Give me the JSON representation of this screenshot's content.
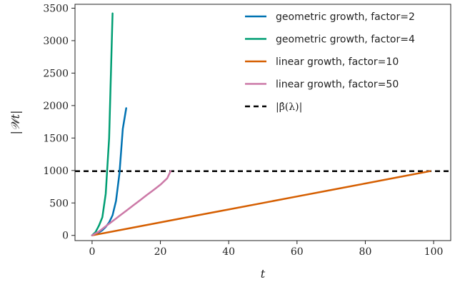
{
  "chart_data": {
    "type": "line",
    "title": "",
    "xlabel": "t",
    "ylabel": "|𝒲t|",
    "xlim": [
      -5,
      105
    ],
    "ylim": [
      -80,
      3560
    ],
    "xticks": [
      0,
      20,
      40,
      60,
      80,
      100
    ],
    "yticks": [
      0,
      500,
      1000,
      1500,
      2000,
      2500,
      3000,
      3500
    ],
    "grid": false,
    "legend_position": "top-right",
    "series": [
      {
        "name": "geometric growth, factor=2",
        "color": "#0072b2",
        "x": [
          0,
          1,
          2,
          3,
          4,
          5,
          6,
          7,
          8,
          9,
          10
        ],
        "y": [
          0,
          20,
          45,
          80,
          130,
          200,
          310,
          530,
          950,
          1640,
          1960
        ]
      },
      {
        "name": "geometric growth, factor=4",
        "color": "#009e73",
        "x": [
          0,
          1,
          2,
          3,
          4,
          5,
          6
        ],
        "y": [
          0,
          50,
          150,
          280,
          640,
          1500,
          3420
        ]
      },
      {
        "name": "linear growth, factor=10",
        "color": "#d55e00",
        "x": [
          0,
          10,
          20,
          30,
          40,
          50,
          60,
          70,
          80,
          90,
          99
        ],
        "y": [
          0,
          100,
          200,
          300,
          400,
          500,
          600,
          700,
          800,
          900,
          990
        ]
      },
      {
        "name": "linear growth, factor=50",
        "color": "#cc79a7",
        "x": [
          0,
          1,
          2,
          3,
          4,
          5,
          6,
          7,
          8,
          10,
          12,
          14,
          16,
          18,
          20,
          22,
          23
        ],
        "y": [
          0,
          30,
          60,
          100,
          140,
          180,
          220,
          260,
          300,
          380,
          460,
          540,
          620,
          700,
          780,
          880,
          990
        ]
      }
    ],
    "reference_line": {
      "label": "|β̂(λ)|",
      "y": 990,
      "style": "dashed",
      "color": "#000000"
    }
  }
}
